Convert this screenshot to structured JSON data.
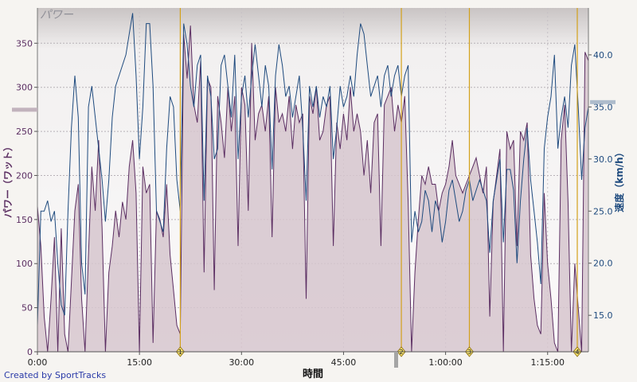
{
  "chart_data": {
    "type": "line",
    "title": "パワー",
    "xlabel": "時間",
    "ylabel_left": "パワー（ワット）",
    "ylabel_right": "速度（km/h）",
    "xlim_min": [
      0,
      81
    ],
    "x_ticks": [
      "0:00",
      "15:00",
      "30:00",
      "45:00",
      "1:00:00",
      "1:15:00"
    ],
    "x_tick_values_min": [
      0,
      15,
      30,
      45,
      60,
      75
    ],
    "ylim_left": [
      0,
      390
    ],
    "y_ticks_left": [
      "0",
      "50",
      "100",
      "150",
      "200",
      "250",
      "300",
      "350"
    ],
    "y_tick_values_left": [
      0,
      50,
      100,
      150,
      200,
      250,
      300,
      350
    ],
    "ylim_right": [
      11.5,
      44.5
    ],
    "y_ticks_right": [
      "15.0",
      "20.0",
      "25.0",
      "30.0",
      "35.0",
      "40.0"
    ],
    "y_tick_values_right": [
      15,
      20,
      25,
      30,
      35,
      40
    ],
    "avg_power": 275,
    "avg_speed": 35.5,
    "laps": [
      {
        "label": "1",
        "x_min": 21
      },
      {
        "label": "2",
        "x_min": 53.5
      },
      {
        "label": "3",
        "x_min": 63.5
      },
      {
        "label": "4",
        "x_min": 81
      }
    ],
    "series": [
      {
        "name": "パワー",
        "axis": "left",
        "x_min": [
          0,
          0.5,
          1,
          1.5,
          2,
          2.5,
          3,
          3.5,
          4,
          4.5,
          5,
          5.5,
          6,
          6.5,
          7,
          7.5,
          8,
          8.5,
          9,
          9.5,
          10,
          10.5,
          11,
          11.5,
          12,
          12.5,
          13,
          13.5,
          14,
          14.5,
          15,
          15.5,
          16,
          16.5,
          17,
          17.5,
          18,
          18.5,
          19,
          19.5,
          20,
          20.5,
          21,
          21.5,
          22,
          22.5,
          23,
          23.5,
          24,
          24.5,
          25,
          25.5,
          26,
          26.5,
          27,
          27.5,
          28,
          28.5,
          29,
          29.5,
          30,
          30.5,
          31,
          31.5,
          32,
          32.5,
          33,
          33.5,
          34,
          34.5,
          35,
          35.5,
          36,
          36.5,
          37,
          37.5,
          38,
          38.5,
          39,
          39.5,
          40,
          40.5,
          41,
          41.5,
          42,
          42.5,
          43,
          43.5,
          44,
          44.5,
          45,
          45.5,
          46,
          46.5,
          47,
          47.5,
          48,
          48.5,
          49,
          49.5,
          50,
          50.5,
          51,
          51.5,
          52,
          52.5,
          53,
          53.5,
          54,
          54.5,
          55,
          55.5,
          56,
          56.5,
          57,
          57.5,
          58,
          58.5,
          59,
          59.5,
          60,
          60.5,
          61,
          61.5,
          62,
          62.5,
          63,
          63.5,
          64,
          64.5,
          65,
          65.5,
          66,
          66.5,
          67,
          67.5,
          68,
          68.5,
          69,
          69.5,
          70,
          70.5,
          71,
          71.5,
          72,
          72.5,
          73,
          73.5,
          74,
          74.5,
          75,
          75.5,
          76,
          76.5,
          77,
          77.5,
          78,
          78.5,
          79,
          79.5,
          80,
          80.5,
          81
        ],
        "values": [
          165,
          120,
          40,
          0,
          60,
          130,
          0,
          140,
          20,
          0,
          80,
          160,
          190,
          60,
          0,
          110,
          210,
          160,
          240,
          140,
          0,
          90,
          120,
          160,
          130,
          170,
          150,
          210,
          240,
          180,
          0,
          210,
          180,
          190,
          10,
          160,
          150,
          130,
          190,
          110,
          70,
          30,
          20,
          360,
          310,
          370,
          280,
          260,
          330,
          90,
          310,
          300,
          70,
          290,
          260,
          220,
          300,
          250,
          290,
          120,
          300,
          280,
          160,
          350,
          240,
          270,
          280,
          250,
          290,
          130,
          300,
          260,
          270,
          250,
          290,
          230,
          280,
          260,
          270,
          60,
          290,
          270,
          300,
          240,
          250,
          280,
          290,
          120,
          260,
          230,
          270,
          240,
          300,
          250,
          270,
          250,
          200,
          240,
          180,
          260,
          270,
          120,
          280,
          290,
          300,
          250,
          280,
          260,
          290,
          170,
          0,
          90,
          150,
          200,
          190,
          210,
          190,
          190,
          160,
          180,
          190,
          210,
          240,
          200,
          190,
          180,
          190,
          200,
          210,
          220,
          200,
          180,
          210,
          40,
          170,
          200,
          230,
          0,
          250,
          230,
          240,
          120,
          250,
          240,
          260,
          110,
          60,
          30,
          20,
          180,
          100,
          60,
          10,
          0,
          240,
          280,
          170,
          0,
          100,
          50,
          0,
          340,
          330,
          370,
          320,
          60,
          0,
          0
        ]
      },
      {
        "name": "速度",
        "axis": "right",
        "x_min": [
          0,
          0.5,
          1,
          1.5,
          2,
          2.5,
          3,
          3.5,
          4,
          4.5,
          5,
          5.5,
          6,
          6.5,
          7,
          7.5,
          8,
          8.5,
          9,
          9.5,
          10,
          10.5,
          11,
          11.5,
          12,
          12.5,
          13,
          13.5,
          14,
          14.5,
          15,
          15.5,
          16,
          16.5,
          17,
          17.5,
          18,
          18.5,
          19,
          19.5,
          20,
          20.5,
          21,
          21.5,
          22,
          22.5,
          23,
          23.5,
          24,
          24.5,
          25,
          25.5,
          26,
          26.5,
          27,
          27.5,
          28,
          28.5,
          29,
          29.5,
          30,
          30.5,
          31,
          31.5,
          32,
          32.5,
          33,
          33.5,
          34,
          34.5,
          35,
          35.5,
          36,
          36.5,
          37,
          37.5,
          38,
          38.5,
          39,
          39.5,
          40,
          40.5,
          41,
          41.5,
          42,
          42.5,
          43,
          43.5,
          44,
          44.5,
          45,
          45.5,
          46,
          46.5,
          47,
          47.5,
          48,
          48.5,
          49,
          49.5,
          50,
          50.5,
          51,
          51.5,
          52,
          52.5,
          53,
          53.5,
          54,
          54.5,
          55,
          55.5,
          56,
          56.5,
          57,
          57.5,
          58,
          58.5,
          59,
          59.5,
          60,
          60.5,
          61,
          61.5,
          62,
          62.5,
          63,
          63.5,
          64,
          64.5,
          65,
          65.5,
          66,
          66.5,
          67,
          67.5,
          68,
          68.5,
          69,
          69.5,
          70,
          70.5,
          71,
          71.5,
          72,
          72.5,
          73,
          73.5,
          74,
          74.5,
          75,
          75.5,
          76,
          76.5,
          77,
          77.5,
          78,
          78.5,
          79,
          79.5,
          80,
          80.5,
          81
        ],
        "values": [
          14,
          25,
          25,
          26,
          24,
          25,
          20,
          16,
          15,
          25,
          33,
          38,
          34,
          20,
          17,
          35,
          37,
          34,
          31,
          28,
          24,
          28,
          34,
          37,
          38,
          39,
          40,
          42,
          44,
          38,
          30,
          35,
          43,
          43,
          37,
          25,
          24,
          23,
          31,
          36,
          35,
          28,
          25,
          43,
          41,
          37,
          35,
          39,
          40,
          26,
          38,
          36,
          30,
          31,
          39,
          40,
          37,
          34,
          40,
          30,
          36,
          38,
          34,
          38,
          41,
          38,
          35,
          39,
          37,
          29,
          38,
          41,
          39,
          36,
          37,
          34,
          36,
          38,
          33,
          26,
          37,
          35,
          37,
          34,
          36,
          35,
          37,
          30,
          33,
          37,
          35,
          36,
          38,
          36,
          40,
          43,
          42,
          39,
          36,
          37,
          38,
          35,
          38,
          39,
          36,
          38,
          39,
          36,
          38,
          39,
          22,
          25,
          23,
          24,
          27,
          26,
          23,
          26,
          25,
          22,
          24,
          27,
          28,
          26,
          24,
          25,
          27,
          28,
          26,
          27,
          28,
          27,
          26,
          21,
          26,
          28,
          30,
          22,
          29,
          29,
          27,
          20,
          26,
          30,
          33,
          28,
          25,
          22,
          18,
          31,
          34,
          36,
          40,
          31,
          34,
          36,
          33,
          39,
          41,
          35,
          28,
          33,
          35,
          37,
          30,
          21,
          20,
          19
        ]
      }
    ]
  },
  "credit": "Created by SportTracks"
}
